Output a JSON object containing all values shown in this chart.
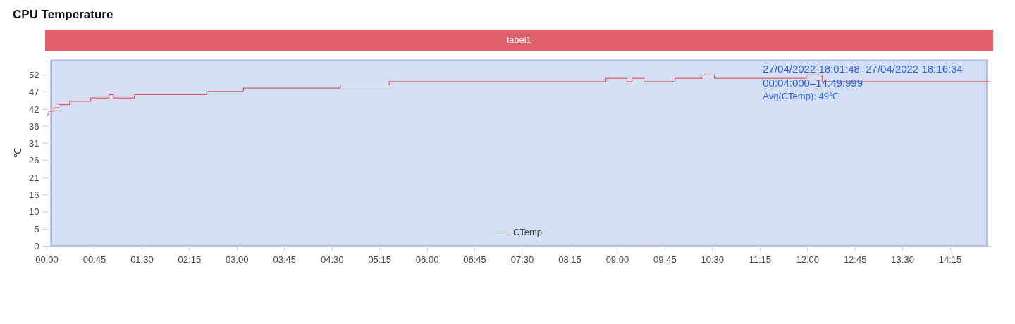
{
  "chart_data": {
    "type": "step",
    "title": "CPU Temperature",
    "ylabel": "℃",
    "x": [
      0,
      0.03,
      0.11,
      0.19,
      0.36,
      0.69,
      0.98,
      1.05,
      1.38,
      2.52,
      3.1,
      4.63,
      5.4,
      8.82,
      9.15,
      9.23,
      9.42,
      9.91,
      10.35,
      10.53,
      11.98,
      12.23,
      14.88
    ],
    "series": [
      {
        "name": "CTemp",
        "color": "#d9605f",
        "values": [
          40,
          41,
          42,
          43,
          44,
          45,
          46,
          45,
          46,
          47,
          48,
          49,
          50,
          51,
          50,
          51,
          50,
          51,
          52,
          51,
          52,
          50,
          50
        ]
      }
    ],
    "xlim": [
      0,
      14.9
    ],
    "xticks": [
      {
        "value": 0,
        "label": "00:00"
      },
      {
        "value": 0.75,
        "label": "00:45"
      },
      {
        "value": 1.5,
        "label": "01:30"
      },
      {
        "value": 2.25,
        "label": "02:15"
      },
      {
        "value": 3,
        "label": "03:00"
      },
      {
        "value": 3.75,
        "label": "03:45"
      },
      {
        "value": 4.5,
        "label": "04:30"
      },
      {
        "value": 5.25,
        "label": "05:15"
      },
      {
        "value": 6,
        "label": "06:00"
      },
      {
        "value": 6.75,
        "label": "06:45"
      },
      {
        "value": 7.5,
        "label": "07:30"
      },
      {
        "value": 8.25,
        "label": "08:15"
      },
      {
        "value": 9,
        "label": "09:00"
      },
      {
        "value": 9.75,
        "label": "09:45"
      },
      {
        "value": 10.5,
        "label": "10:30"
      },
      {
        "value": 11.25,
        "label": "11:15"
      },
      {
        "value": 12,
        "label": "12:00"
      },
      {
        "value": 12.75,
        "label": "12:45"
      },
      {
        "value": 13.5,
        "label": "13:30"
      },
      {
        "value": 14.25,
        "label": "14:15"
      }
    ],
    "ylim": [
      0,
      56.7
    ],
    "yticks": [
      0,
      {
        "value": 5.2,
        "label": "5"
      },
      {
        "value": 10.4,
        "label": "10"
      },
      {
        "value": 15.6,
        "label": "16"
      },
      {
        "value": 20.8,
        "label": "21"
      },
      26,
      {
        "value": 31.2,
        "label": "31"
      },
      {
        "value": 36.4,
        "label": "36"
      },
      {
        "value": 41.6,
        "label": "42"
      },
      {
        "value": 46.8,
        "label": "47"
      },
      52
    ],
    "bands": [
      {
        "axis": "x",
        "from": 0.067,
        "to": 14.833,
        "label": "label1",
        "color": "#d4dff6"
      }
    ],
    "annotations": [
      "27/04/2022 18:01:48–27/04/2022 18:16:34",
      "00:04:000–14:49:999",
      "Avg(CTemp): 49℃"
    ],
    "grid": false,
    "legend": "bottom",
    "marker": "none",
    "line_style": "solid"
  }
}
